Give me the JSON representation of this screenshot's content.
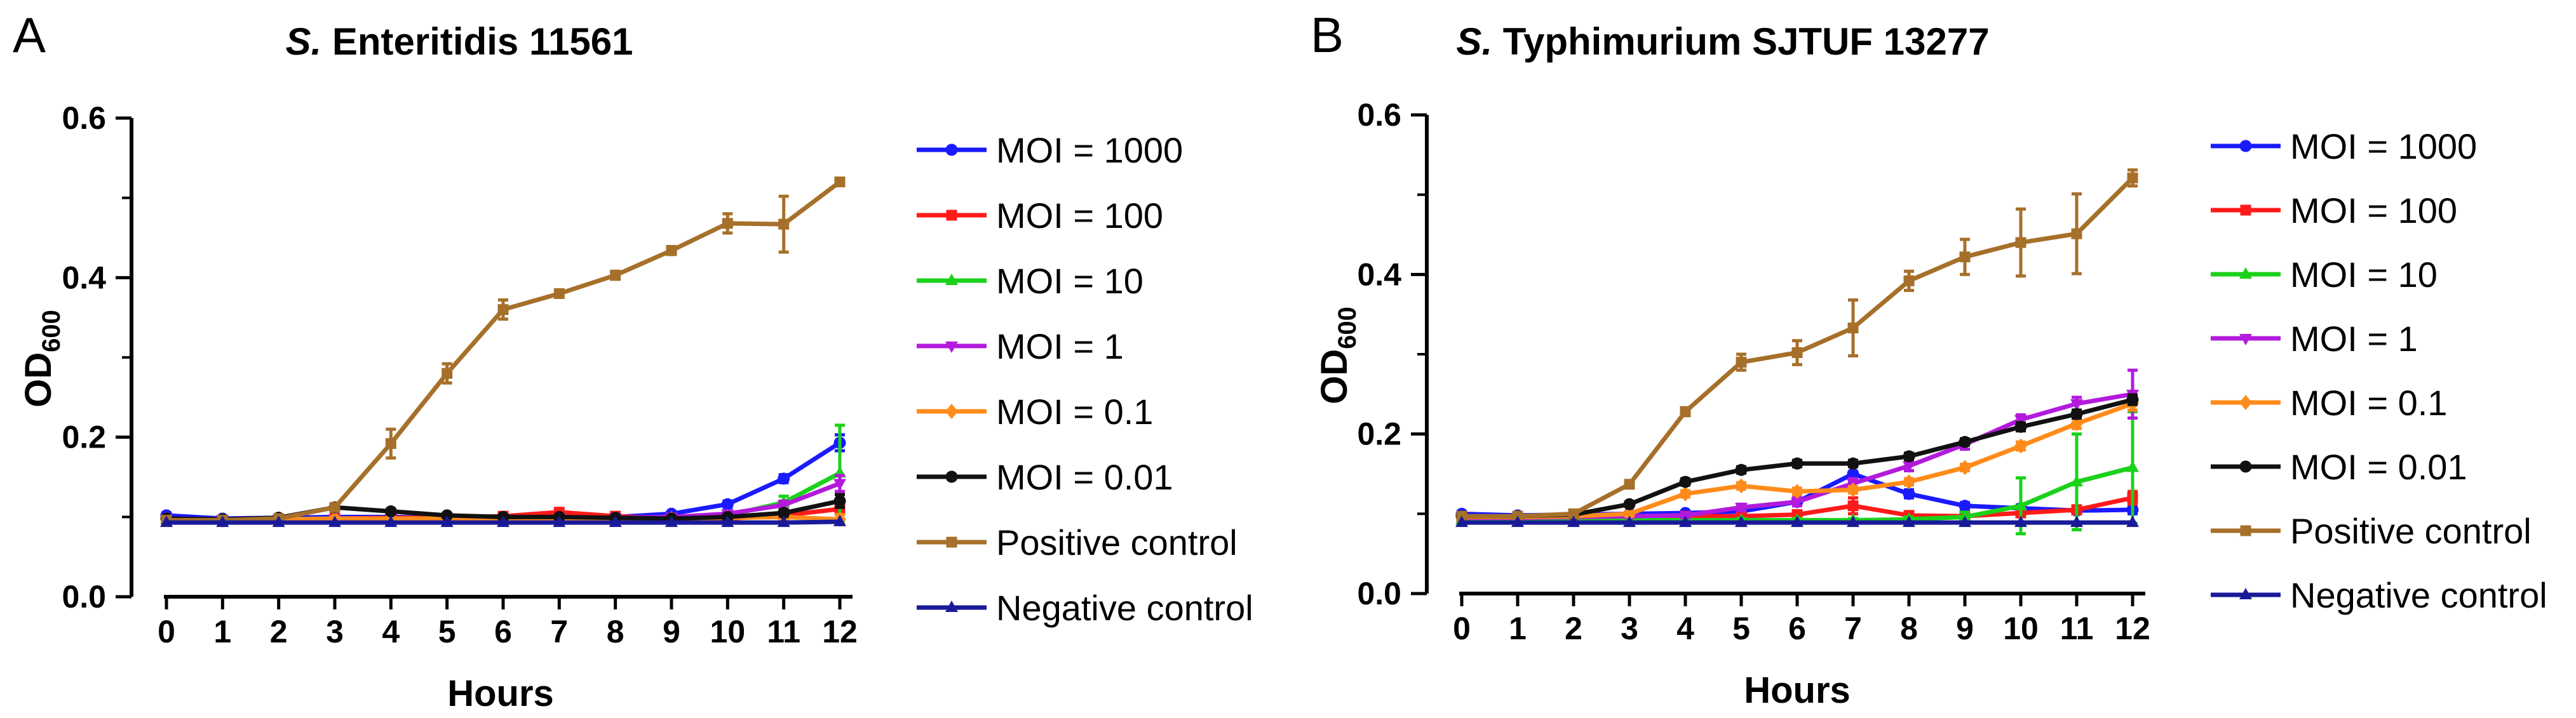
{
  "chart_data": [
    {
      "type": "line",
      "panel": "A",
      "title_italic": "S.",
      "title_rest": " Enteritidis 11561",
      "title": "S. Enteritidis 11561",
      "xlabel": "Hours",
      "ylabel_main": "OD",
      "ylabel_sub": "600",
      "ylabel": "OD600",
      "x": [
        0,
        1,
        2,
        3,
        4,
        5,
        6,
        7,
        8,
        9,
        10,
        11,
        12
      ],
      "xticks": [
        "0",
        "1",
        "2",
        "3",
        "4",
        "5",
        "6",
        "7",
        "8",
        "9",
        "10",
        "11",
        "12"
      ],
      "yticks": [
        "0.0",
        "0.2",
        "0.4",
        "0.6"
      ],
      "ylim": [
        0,
        0.6
      ],
      "legend_position": "right",
      "series": [
        {
          "name": "MOI = 1000",
          "color": "#1a1aff",
          "marker": "circle",
          "values": [
            0.102,
            0.098,
            0.099,
            0.1,
            0.1,
            0.099,
            0.098,
            0.099,
            0.1,
            0.104,
            0.116,
            0.148,
            0.193
          ],
          "errors": [
            0.003,
            0.002,
            0.002,
            0.002,
            0.002,
            0.002,
            0.002,
            0.002,
            0.002,
            0.002,
            0.004,
            0.005,
            0.01
          ]
        },
        {
          "name": "MOI = 100",
          "color": "#ff1a1a",
          "marker": "square",
          "values": [
            0.096,
            0.096,
            0.097,
            0.098,
            0.099,
            0.099,
            0.101,
            0.106,
            0.101,
            0.098,
            0.098,
            0.102,
            0.11
          ],
          "errors": [
            0.002,
            0.002,
            0.002,
            0.002,
            0.002,
            0.002,
            0.002,
            0.003,
            0.003,
            0.002,
            0.002,
            0.004,
            0.006
          ]
        },
        {
          "name": "MOI = 10",
          "color": "#1ad21a",
          "marker": "triangle",
          "values": [
            0.097,
            0.096,
            0.096,
            0.097,
            0.097,
            0.097,
            0.097,
            0.097,
            0.097,
            0.098,
            0.102,
            0.118,
            0.155
          ],
          "errors": [
            0.002,
            0.002,
            0.002,
            0.002,
            0.002,
            0.002,
            0.002,
            0.002,
            0.002,
            0.002,
            0.004,
            0.008,
            0.06
          ]
        },
        {
          "name": "MOI = 1",
          "color": "#b31adb",
          "marker": "triangle-down",
          "values": [
            0.098,
            0.097,
            0.097,
            0.097,
            0.098,
            0.098,
            0.098,
            0.099,
            0.099,
            0.1,
            0.104,
            0.115,
            0.142
          ],
          "errors": [
            0.002,
            0.002,
            0.002,
            0.002,
            0.002,
            0.002,
            0.002,
            0.002,
            0.002,
            0.002,
            0.003,
            0.005,
            0.01
          ]
        },
        {
          "name": "MOI = 0.1",
          "color": "#ff8c1a",
          "marker": "diamond",
          "values": [
            0.097,
            0.096,
            0.097,
            0.098,
            0.098,
            0.098,
            0.098,
            0.098,
            0.098,
            0.098,
            0.099,
            0.1,
            0.097
          ],
          "errors": [
            0.002,
            0.002,
            0.002,
            0.002,
            0.002,
            0.002,
            0.002,
            0.002,
            0.002,
            0.002,
            0.003,
            0.003,
            0.006
          ]
        },
        {
          "name": "MOI = 0.01",
          "color": "#111111",
          "marker": "circle",
          "values": [
            0.098,
            0.097,
            0.099,
            0.112,
            0.107,
            0.102,
            0.1,
            0.1,
            0.099,
            0.098,
            0.1,
            0.105,
            0.12
          ],
          "errors": [
            0.002,
            0.002,
            0.002,
            0.004,
            0.003,
            0.002,
            0.002,
            0.002,
            0.002,
            0.002,
            0.003,
            0.004,
            0.008
          ]
        },
        {
          "name": "Positive control",
          "color": "#a6702a",
          "marker": "square",
          "values": [
            0.096,
            0.096,
            0.098,
            0.112,
            0.192,
            0.28,
            0.36,
            0.38,
            0.403,
            0.434,
            0.468,
            0.467,
            0.52
          ],
          "errors": [
            0.002,
            0.002,
            0.002,
            0.004,
            0.018,
            0.012,
            0.012,
            0.004,
            0.005,
            0.005,
            0.012,
            0.035,
            0.004
          ]
        },
        {
          "name": "Negative control",
          "color": "#1a1a99",
          "marker": "triangle",
          "values": [
            0.093,
            0.093,
            0.093,
            0.093,
            0.093,
            0.093,
            0.093,
            0.093,
            0.093,
            0.093,
            0.093,
            0.093,
            0.094
          ],
          "errors": [
            0.001,
            0.001,
            0.001,
            0.001,
            0.001,
            0.001,
            0.001,
            0.001,
            0.001,
            0.001,
            0.001,
            0.001,
            0.001
          ]
        }
      ]
    },
    {
      "type": "line",
      "panel": "B",
      "title_italic": "S.",
      "title_rest": " Typhimurium SJTUF 13277",
      "title": "S. Typhimurium SJTUF 13277",
      "xlabel": "Hours",
      "ylabel_main": "OD",
      "ylabel_sub": "600",
      "ylabel": "OD600",
      "x": [
        0,
        1,
        2,
        3,
        4,
        5,
        6,
        7,
        8,
        9,
        10,
        11,
        12
      ],
      "xticks": [
        "0",
        "1",
        "2",
        "3",
        "4",
        "5",
        "6",
        "7",
        "8",
        "9",
        "10",
        "11",
        "12"
      ],
      "yticks": [
        "0.0",
        "0.2",
        "0.4",
        "0.6"
      ],
      "ylim": [
        0,
        0.6
      ],
      "legend_position": "right",
      "series": [
        {
          "name": "MOI = 1000",
          "color": "#1a1aff",
          "marker": "circle",
          "values": [
            0.1,
            0.098,
            0.099,
            0.1,
            0.101,
            0.103,
            0.115,
            0.15,
            0.125,
            0.11,
            0.107,
            0.104,
            0.105
          ],
          "errors": [
            0.003,
            0.002,
            0.002,
            0.002,
            0.002,
            0.003,
            0.004,
            0.01,
            0.005,
            0.004,
            0.004,
            0.004,
            0.005
          ]
        },
        {
          "name": "MOI = 100",
          "color": "#ff1a1a",
          "marker": "square",
          "values": [
            0.094,
            0.094,
            0.095,
            0.096,
            0.097,
            0.097,
            0.099,
            0.11,
            0.098,
            0.097,
            0.101,
            0.105,
            0.12
          ],
          "errors": [
            0.002,
            0.002,
            0.002,
            0.002,
            0.002,
            0.002,
            0.003,
            0.01,
            0.004,
            0.003,
            0.004,
            0.005,
            0.008
          ]
        },
        {
          "name": "MOI = 10",
          "color": "#1ad21a",
          "marker": "triangle",
          "values": [
            0.092,
            0.092,
            0.092,
            0.092,
            0.092,
            0.092,
            0.092,
            0.092,
            0.093,
            0.096,
            0.11,
            0.14,
            0.158
          ],
          "errors": [
            0.002,
            0.002,
            0.002,
            0.002,
            0.002,
            0.002,
            0.002,
            0.002,
            0.003,
            0.006,
            0.035,
            0.06,
            0.07
          ]
        },
        {
          "name": "MOI = 1",
          "color": "#b31adb",
          "marker": "triangle-down",
          "values": [
            0.095,
            0.095,
            0.096,
            0.097,
            0.098,
            0.108,
            0.115,
            0.138,
            0.16,
            0.187,
            0.218,
            0.238,
            0.25
          ],
          "errors": [
            0.002,
            0.002,
            0.002,
            0.002,
            0.003,
            0.004,
            0.005,
            0.006,
            0.006,
            0.006,
            0.006,
            0.008,
            0.03
          ]
        },
        {
          "name": "MOI = 0.1",
          "color": "#ff8c1a",
          "marker": "diamond",
          "values": [
            0.096,
            0.096,
            0.097,
            0.1,
            0.125,
            0.135,
            0.128,
            0.13,
            0.14,
            0.158,
            0.185,
            0.213,
            0.238
          ],
          "errors": [
            0.002,
            0.002,
            0.002,
            0.003,
            0.004,
            0.004,
            0.004,
            0.004,
            0.004,
            0.004,
            0.005,
            0.006,
            0.008
          ]
        },
        {
          "name": "MOI = 0.01",
          "color": "#111111",
          "marker": "circle",
          "values": [
            0.097,
            0.097,
            0.099,
            0.112,
            0.14,
            0.155,
            0.163,
            0.163,
            0.172,
            0.19,
            0.209,
            0.225,
            0.243
          ],
          "errors": [
            0.002,
            0.002,
            0.002,
            0.003,
            0.004,
            0.004,
            0.004,
            0.004,
            0.004,
            0.004,
            0.005,
            0.005,
            0.006
          ]
        },
        {
          "name": "Positive control",
          "color": "#a6702a",
          "marker": "square",
          "values": [
            0.097,
            0.097,
            0.1,
            0.137,
            0.228,
            0.29,
            0.302,
            0.333,
            0.392,
            0.422,
            0.44,
            0.451,
            0.521
          ],
          "errors": [
            0.002,
            0.002,
            0.002,
            0.004,
            0.005,
            0.01,
            0.015,
            0.035,
            0.012,
            0.022,
            0.042,
            0.05,
            0.01
          ]
        },
        {
          "name": "Negative control",
          "color": "#1a1a99",
          "marker": "triangle",
          "values": [
            0.089,
            0.089,
            0.089,
            0.089,
            0.089,
            0.089,
            0.089,
            0.089,
            0.089,
            0.089,
            0.089,
            0.089,
            0.089
          ],
          "errors": [
            0.001,
            0.001,
            0.001,
            0.001,
            0.001,
            0.001,
            0.001,
            0.001,
            0.001,
            0.001,
            0.001,
            0.001,
            0.001
          ]
        }
      ]
    }
  ]
}
